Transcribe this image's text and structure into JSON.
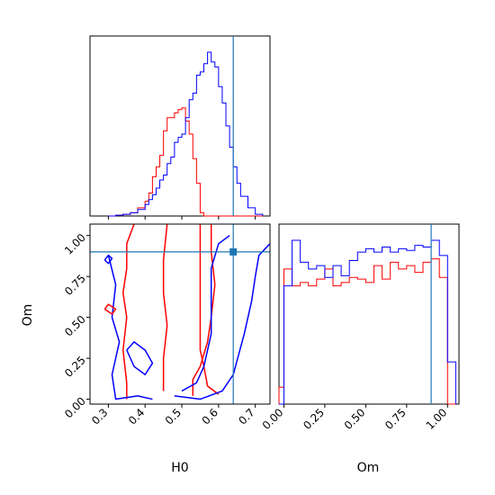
{
  "chart_data": {
    "type": "corner",
    "parameters": [
      "H0",
      "Om"
    ],
    "truth": {
      "H0": 0.64,
      "Om": 0.9,
      "color": "#1f77b4"
    },
    "series_colors": [
      "#ff0000",
      "#0000ff"
    ],
    "axes": {
      "H0": {
        "range": [
          0.25,
          0.74
        ],
        "ticks": [
          0.3,
          0.4,
          0.5,
          0.6,
          0.7
        ],
        "tick_labels": [
          "0.3",
          "0.4",
          "0.5",
          "0.6",
          "0.7"
        ]
      },
      "Om": {
        "range": [
          -0.03,
          1.07
        ],
        "ticks": [
          0.0,
          0.25,
          0.5,
          0.75,
          1.0
        ],
        "tick_labels": [
          "0.00",
          "0.25",
          "0.50",
          "0.75",
          "1.00"
        ]
      }
    },
    "hist_H0": {
      "bin_edges": [
        0.3,
        0.32,
        0.34,
        0.36,
        0.38,
        0.4,
        0.41,
        0.42,
        0.43,
        0.44,
        0.45,
        0.46,
        0.47,
        0.48,
        0.49,
        0.5,
        0.51,
        0.52,
        0.53,
        0.54,
        0.55,
        0.56,
        0.57,
        0.58,
        0.59,
        0.6,
        0.61,
        0.62,
        0.63,
        0.64,
        0.65,
        0.66,
        0.68,
        0.7,
        0.72
      ],
      "red": [
        0,
        0.005,
        0.01,
        0.02,
        0.05,
        0.09,
        0.14,
        0.24,
        0.3,
        0.37,
        0.52,
        0.6,
        0.6,
        0.63,
        0.65,
        0.66,
        0.58,
        0.5,
        0.35,
        0.2,
        0.02,
        0,
        0,
        0,
        0,
        0,
        0,
        0,
        0,
        0,
        0,
        0,
        0,
        0
      ],
      "blue": [
        0,
        0.005,
        0.01,
        0.02,
        0.04,
        0.07,
        0.1,
        0.13,
        0.17,
        0.22,
        0.25,
        0.32,
        0.36,
        0.45,
        0.48,
        0.5,
        0.6,
        0.71,
        0.75,
        0.86,
        0.88,
        0.93,
        1.0,
        0.94,
        0.91,
        0.79,
        0.69,
        0.55,
        0.42,
        0.3,
        0.2,
        0.12,
        0.05,
        0.01
      ]
    },
    "hist_Om": {
      "bin_edges": [
        -0.03,
        0.0,
        0.05,
        0.1,
        0.15,
        0.2,
        0.25,
        0.3,
        0.35,
        0.4,
        0.45,
        0.5,
        0.55,
        0.6,
        0.65,
        0.7,
        0.75,
        0.8,
        0.85,
        0.9,
        0.95,
        1.0,
        1.05
      ],
      "red": [
        0.1,
        0.8,
        0.7,
        0.72,
        0.7,
        0.74,
        0.8,
        0.7,
        0.72,
        0.75,
        0.74,
        0.72,
        0.82,
        0.74,
        0.84,
        0.8,
        0.82,
        0.78,
        0.84,
        0.86,
        0.75,
        0.0
      ],
      "blue": [
        0.0,
        0.7,
        0.97,
        0.84,
        0.8,
        0.82,
        0.75,
        0.82,
        0.76,
        0.85,
        0.9,
        0.92,
        0.9,
        0.93,
        0.9,
        0.92,
        0.91,
        0.94,
        0.93,
        0.97,
        0.88,
        0.25
      ]
    },
    "contours_2d": [
      {
        "color": "#ff0000",
        "level": "inner",
        "path": [
          [
            0.6,
            0.03
          ],
          [
            0.57,
            0.08
          ],
          [
            0.56,
            0.2
          ],
          [
            0.55,
            0.3
          ],
          [
            0.55,
            0.45
          ],
          [
            0.55,
            0.6
          ],
          [
            0.55,
            0.8
          ],
          [
            0.55,
            1.07
          ]
        ]
      },
      {
        "color": "#ff0000",
        "level": "inner",
        "path": [
          [
            0.46,
            1.07
          ],
          [
            0.45,
            0.85
          ],
          [
            0.45,
            0.65
          ],
          [
            0.46,
            0.45
          ],
          [
            0.45,
            0.25
          ],
          [
            0.45,
            0.05
          ]
        ]
      },
      {
        "color": "#ff0000",
        "level": "outer",
        "path": [
          [
            0.58,
            1.07
          ],
          [
            0.58,
            0.9
          ],
          [
            0.59,
            0.7
          ],
          [
            0.58,
            0.5
          ],
          [
            0.57,
            0.35
          ],
          [
            0.55,
            0.2
          ],
          [
            0.53,
            0.12
          ],
          [
            0.53,
            0.02
          ]
        ]
      },
      {
        "color": "#ff0000",
        "level": "outer",
        "path": [
          [
            0.37,
            1.07
          ],
          [
            0.35,
            0.95
          ],
          [
            0.35,
            0.8
          ],
          [
            0.34,
            0.65
          ],
          [
            0.35,
            0.5
          ],
          [
            0.34,
            0.3
          ],
          [
            0.35,
            0.1
          ],
          [
            0.35,
            0.0
          ]
        ]
      },
      {
        "color": "#0000ff",
        "level": "inner",
        "path": [
          [
            0.5,
            0.05
          ],
          [
            0.54,
            0.1
          ],
          [
            0.56,
            0.2
          ],
          [
            0.58,
            0.4
          ],
          [
            0.58,
            0.6
          ],
          [
            0.58,
            0.8
          ],
          [
            0.6,
            0.95
          ],
          [
            0.63,
            1.0
          ]
        ]
      },
      {
        "color": "#0000ff",
        "level": "outer",
        "path": [
          [
            0.48,
            0.02
          ],
          [
            0.55,
            0.0
          ],
          [
            0.61,
            0.05
          ],
          [
            0.64,
            0.15
          ],
          [
            0.67,
            0.4
          ],
          [
            0.69,
            0.6
          ],
          [
            0.7,
            0.75
          ],
          [
            0.71,
            0.88
          ],
          [
            0.74,
            0.95
          ]
        ]
      },
      {
        "color": "#0000ff",
        "level": "outer",
        "path": [
          [
            0.3,
            0.88
          ],
          [
            0.32,
            0.7
          ],
          [
            0.31,
            0.5
          ],
          [
            0.33,
            0.35
          ],
          [
            0.31,
            0.15
          ],
          [
            0.32,
            0.0
          ],
          [
            0.38,
            0.02
          ],
          [
            0.42,
            0.0
          ]
        ]
      },
      {
        "color": "#0000ff",
        "level": "inner",
        "path": [
          [
            0.35,
            0.3
          ],
          [
            0.37,
            0.2
          ],
          [
            0.4,
            0.15
          ],
          [
            0.42,
            0.22
          ],
          [
            0.4,
            0.3
          ],
          [
            0.37,
            0.35
          ],
          [
            0.35,
            0.3
          ]
        ]
      },
      {
        "color": "#ff0000",
        "level": "outer",
        "path": [
          [
            0.29,
            0.55
          ],
          [
            0.31,
            0.52
          ],
          [
            0.32,
            0.55
          ],
          [
            0.3,
            0.58
          ],
          [
            0.29,
            0.55
          ]
        ]
      },
      {
        "color": "#0000ff",
        "level": "outer",
        "path": [
          [
            0.29,
            0.85
          ],
          [
            0.3,
            0.83
          ],
          [
            0.31,
            0.86
          ],
          [
            0.3,
            0.88
          ],
          [
            0.29,
            0.85
          ]
        ]
      }
    ]
  }
}
